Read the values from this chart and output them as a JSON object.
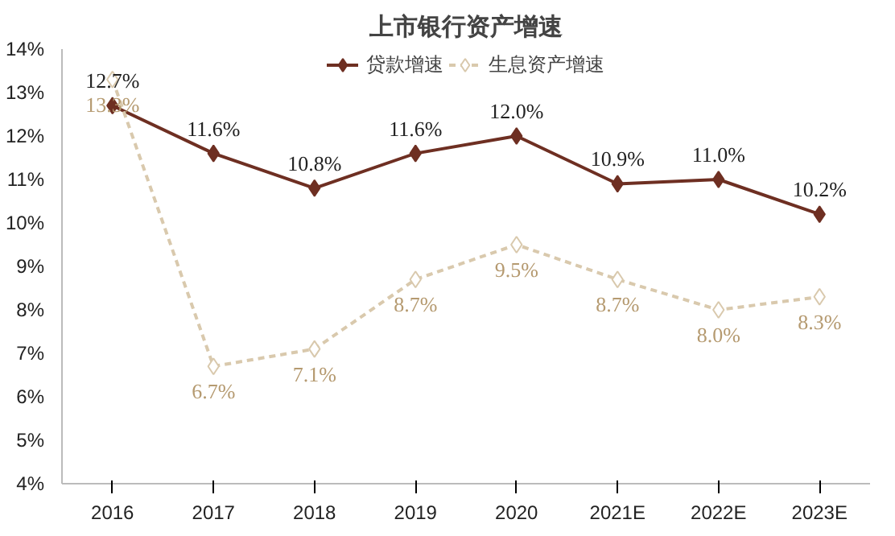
{
  "chart_data": {
    "type": "line",
    "title": "上市银行资产增速",
    "categories": [
      "2016",
      "2017",
      "2018",
      "2019",
      "2020",
      "2021E",
      "2022E",
      "2023E"
    ],
    "series": [
      {
        "name": "贷款增速",
        "color": "#6e2f22",
        "values": [
          12.7,
          11.6,
          10.8,
          11.6,
          12.0,
          10.9,
          11.0,
          10.2
        ],
        "value_labels": [
          "12.7%",
          "11.6%",
          "10.8%",
          "11.6%",
          "12.0%",
          "10.9%",
          "11.0%",
          "10.2%"
        ],
        "line_style": "solid",
        "marker": "diamond"
      },
      {
        "name": "生息资产增速",
        "color": "#d9c9ad",
        "values": [
          13.3,
          6.7,
          7.1,
          8.7,
          9.5,
          8.7,
          8.0,
          8.3
        ],
        "value_labels": [
          "13.3%",
          "6.7%",
          "7.1%",
          "8.7%",
          "9.5%",
          "8.7%",
          "8.0%",
          "8.3%"
        ],
        "line_style": "dashed",
        "marker": "diamond"
      }
    ],
    "ylim": [
      4,
      14
    ],
    "yticks": [
      {
        "value": 4,
        "label": "4%"
      },
      {
        "value": 5,
        "label": "5%"
      },
      {
        "value": 6,
        "label": "6%"
      },
      {
        "value": 7,
        "label": "7%"
      },
      {
        "value": 8,
        "label": "8%"
      },
      {
        "value": 9,
        "label": "9%"
      },
      {
        "value": 10,
        "label": "10%"
      },
      {
        "value": 11,
        "label": "11%"
      },
      {
        "value": 12,
        "label": "12%"
      },
      {
        "value": 13,
        "label": "13%"
      },
      {
        "value": 14,
        "label": "14%"
      }
    ],
    "legend": "top"
  }
}
